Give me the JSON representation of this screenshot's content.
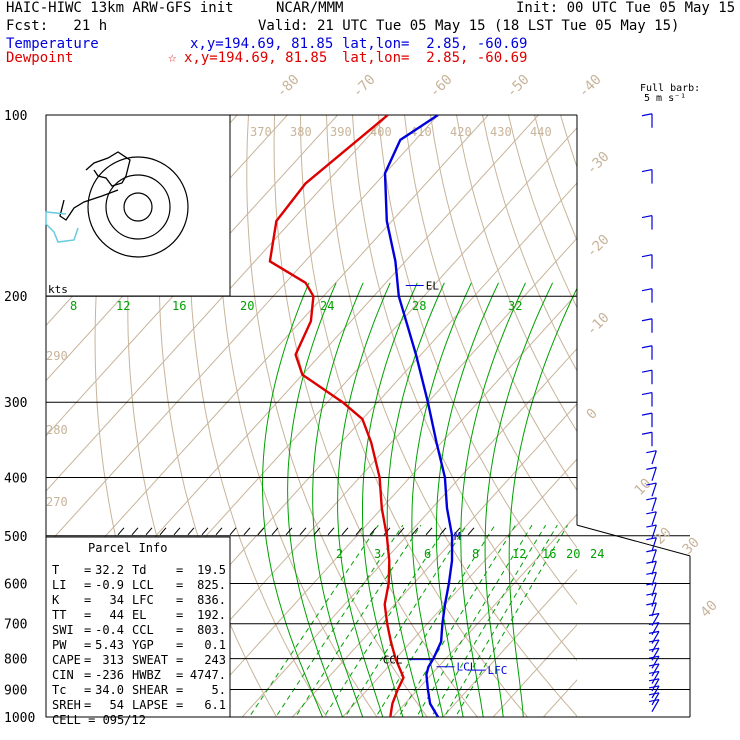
{
  "header": {
    "model": "HAIC-HIWC 13km ARW-GFS init",
    "org": "NCAR/MMM",
    "fcst": "Fcst:   21 h",
    "init": "Init: 00 UTC Tue 05 May 15",
    "valid": "Valid: 21 UTC Tue 05 May 15 (18 LST Tue 05 May 15)",
    "temp_label": "Temperature",
    "temp_xy": "x,y=194.69, 81.85",
    "temp_latlon": "lat,lon=  2.85, -60.69",
    "dew_label": "Dewpoint",
    "dew_marker": "☆",
    "dew_xy": "x,y=194.69, 81.85",
    "dew_latlon": "lat,lon=  2.85, -60.69",
    "full_barb": "Full barb:",
    "full_barb_units": "5 m s⁻¹"
  },
  "colors": {
    "temperature": "#0000dd",
    "dewpoint": "#dd0000",
    "adiabat": "#c8b49a",
    "mixing_ratio": "#00a000",
    "hodograph_tail": "#66ccdd"
  },
  "parcel": {
    "title": "Parcel Info",
    "rows": [
      {
        "k1": "T",
        "v1": "32.2",
        "k2": "Td",
        "v2": "19.5"
      },
      {
        "k1": "LI",
        "v1": "-0.9",
        "k2": "LCL",
        "v2": "825."
      },
      {
        "k1": "K",
        "v1": "34",
        "k2": "LFC",
        "v2": "836."
      },
      {
        "k1": "TT",
        "v1": "44",
        "k2": "EL",
        "v2": "192."
      },
      {
        "k1": "SWI",
        "v1": "-0.4",
        "k2": "CCL",
        "v2": "803."
      },
      {
        "k1": "PW",
        "v1": "5.43",
        "k2": "YGP",
        "v2": "0.1"
      },
      {
        "k1": "CAPE",
        "v1": "313",
        "k2": "SWEAT",
        "v2": "243"
      },
      {
        "k1": "CIN",
        "v1": "-236",
        "k2": "HWBZ",
        "v2": "4747."
      },
      {
        "k1": "Tc",
        "v1": "34.0",
        "k2": "SHEAR",
        "v2": "5."
      },
      {
        "k1": "SREH",
        "v1": "54",
        "k2": "LAPSE",
        "v2": "6.1"
      }
    ],
    "cell": "CELL = 095/12"
  },
  "chart_data": {
    "type": "line",
    "y_axis": "pressure (hPa), log scale, reversed",
    "pressure_levels": [
      100,
      200,
      300,
      400,
      500,
      600,
      700,
      800,
      900,
      1000
    ],
    "isotherm_labels": [
      -80,
      -70,
      -60,
      -50,
      -40,
      -30,
      -20,
      -10,
      0,
      10,
      20,
      30,
      40
    ],
    "theta_labels": [
      370,
      380,
      390,
      400,
      410,
      420,
      430,
      440
    ],
    "theta_low_labels": [
      290,
      280,
      270
    ],
    "mixing_ratio_upper_labels": [
      8,
      12,
      16,
      20,
      24,
      28,
      32
    ],
    "mixing_ratio_lower_labels": [
      2,
      3,
      4,
      6,
      8,
      12,
      16,
      20,
      24
    ],
    "level_markers": [
      {
        "label": "EL",
        "p": 192
      },
      {
        "label": "M",
        "p": 500
      },
      {
        "label": "CCL",
        "p": 803
      },
      {
        "label": "LCL",
        "p": 825
      },
      {
        "label": "LFC",
        "p": 836
      }
    ],
    "kts_label": "kts",
    "series": [
      {
        "name": "Temperature",
        "points": [
          {
            "p": 1000,
            "t": 29
          },
          {
            "p": 950,
            "t": 25
          },
          {
            "p": 900,
            "t": 22
          },
          {
            "p": 850,
            "t": 19
          },
          {
            "p": 825,
            "t": 18
          },
          {
            "p": 800,
            "t": 17.5
          },
          {
            "p": 750,
            "t": 16
          },
          {
            "p": 700,
            "t": 13
          },
          {
            "p": 650,
            "t": 10
          },
          {
            "p": 600,
            "t": 7
          },
          {
            "p": 550,
            "t": 3.5
          },
          {
            "p": 500,
            "t": -1
          },
          {
            "p": 450,
            "t": -7
          },
          {
            "p": 400,
            "t": -13
          },
          {
            "p": 350,
            "t": -21
          },
          {
            "p": 300,
            "t": -30
          },
          {
            "p": 250,
            "t": -41
          },
          {
            "p": 200,
            "t": -55
          },
          {
            "p": 175,
            "t": -62
          },
          {
            "p": 150,
            "t": -71
          },
          {
            "p": 125,
            "t": -80
          },
          {
            "p": 110,
            "t": -83
          },
          {
            "p": 100,
            "t": -80
          }
        ]
      },
      {
        "name": "Dewpoint",
        "points": [
          {
            "p": 1000,
            "t": 19.5
          },
          {
            "p": 950,
            "t": 17.5
          },
          {
            "p": 900,
            "t": 16
          },
          {
            "p": 860,
            "t": 15
          },
          {
            "p": 800,
            "t": 10
          },
          {
            "p": 750,
            "t": 6
          },
          {
            "p": 700,
            "t": 2
          },
          {
            "p": 650,
            "t": -2
          },
          {
            "p": 600,
            "t": -5
          },
          {
            "p": 550,
            "t": -9
          },
          {
            "p": 500,
            "t": -14
          },
          {
            "p": 450,
            "t": -20
          },
          {
            "p": 400,
            "t": -26
          },
          {
            "p": 350,
            "t": -34
          },
          {
            "p": 320,
            "t": -40
          },
          {
            "p": 300,
            "t": -47
          },
          {
            "p": 270,
            "t": -60
          },
          {
            "p": 250,
            "t": -65
          },
          {
            "p": 220,
            "t": -68
          },
          {
            "p": 200,
            "t": -72
          },
          {
            "p": 190,
            "t": -76
          },
          {
            "p": 175,
            "t": -87
          },
          {
            "p": 150,
            "t": -93
          },
          {
            "p": 130,
            "t": -94
          },
          {
            "p": 100,
            "t": -90
          }
        ]
      }
    ]
  }
}
